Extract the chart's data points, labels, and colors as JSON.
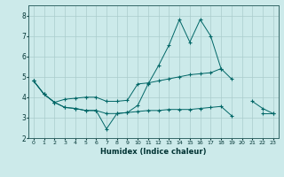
{
  "xlabel": "Humidex (Indice chaleur)",
  "background_color": "#cceaea",
  "grid_color": "#aacccc",
  "line_color": "#006666",
  "xlim": [
    -0.5,
    23.5
  ],
  "ylim": [
    2.0,
    8.5
  ],
  "yticks": [
    2,
    3,
    4,
    5,
    6,
    7,
    8
  ],
  "xticks": [
    0,
    1,
    2,
    3,
    4,
    5,
    6,
    7,
    8,
    9,
    10,
    11,
    12,
    13,
    14,
    15,
    16,
    17,
    18,
    19,
    20,
    21,
    22,
    23
  ],
  "x_values": [
    0,
    1,
    2,
    3,
    4,
    5,
    6,
    7,
    8,
    9,
    10,
    11,
    12,
    13,
    14,
    15,
    16,
    17,
    18,
    19,
    20,
    21,
    22,
    23
  ],
  "line1": [
    4.8,
    4.15,
    3.75,
    3.5,
    3.45,
    3.35,
    3.35,
    2.45,
    3.2,
    3.25,
    3.6,
    4.65,
    5.55,
    6.55,
    7.8,
    6.7,
    7.8,
    7.0,
    5.4,
    4.9,
    null,
    3.8,
    3.45,
    3.2
  ],
  "line2": [
    4.8,
    4.15,
    3.75,
    3.9,
    3.95,
    4.0,
    4.0,
    3.8,
    3.8,
    3.85,
    4.65,
    4.7,
    4.8,
    4.9,
    5.0,
    5.1,
    5.15,
    5.2,
    5.4,
    null,
    null,
    null,
    null,
    null
  ],
  "line3": [
    4.8,
    4.15,
    3.75,
    3.5,
    3.45,
    3.35,
    3.35,
    3.2,
    3.2,
    3.25,
    3.3,
    3.35,
    3.35,
    3.4,
    3.4,
    3.4,
    3.45,
    3.5,
    3.55,
    3.1,
    null,
    null,
    3.2,
    3.2
  ]
}
